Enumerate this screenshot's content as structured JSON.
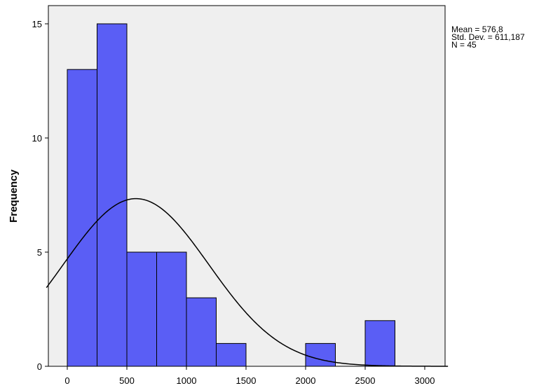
{
  "chart_data": {
    "type": "bar",
    "subtype": "histogram",
    "bins": [
      {
        "start": 0,
        "end": 250,
        "count": 13
      },
      {
        "start": 250,
        "end": 500,
        "count": 15
      },
      {
        "start": 500,
        "end": 750,
        "count": 5
      },
      {
        "start": 750,
        "end": 1000,
        "count": 5
      },
      {
        "start": 1000,
        "end": 1250,
        "count": 3
      },
      {
        "start": 1250,
        "end": 1500,
        "count": 1
      },
      {
        "start": 1500,
        "end": 1750,
        "count": 0
      },
      {
        "start": 1750,
        "end": 2000,
        "count": 0
      },
      {
        "start": 2000,
        "end": 2250,
        "count": 1
      },
      {
        "start": 2250,
        "end": 2500,
        "count": 0
      },
      {
        "start": 2500,
        "end": 2750,
        "count": 2
      }
    ],
    "xlim": [
      -180,
      3200
    ],
    "ylim": [
      0,
      16
    ],
    "xticks": [
      "0",
      "500",
      "1000",
      "1500",
      "2000",
      "2500",
      "3000"
    ],
    "yticks": [
      "0",
      "5",
      "10",
      "15"
    ],
    "xlabel": "",
    "ylabel": "Frequency",
    "normal_curve": {
      "mean": 576.8,
      "sd": 611.187,
      "n": 45,
      "bin_width": 250
    },
    "bar_color": "#5a5ef5",
    "plot_background": "#efefef",
    "grid": false,
    "stats_text": {
      "mean": "Mean = 576,8",
      "sd": "Std. Dev. = 611,187",
      "n": "N = 45"
    }
  }
}
